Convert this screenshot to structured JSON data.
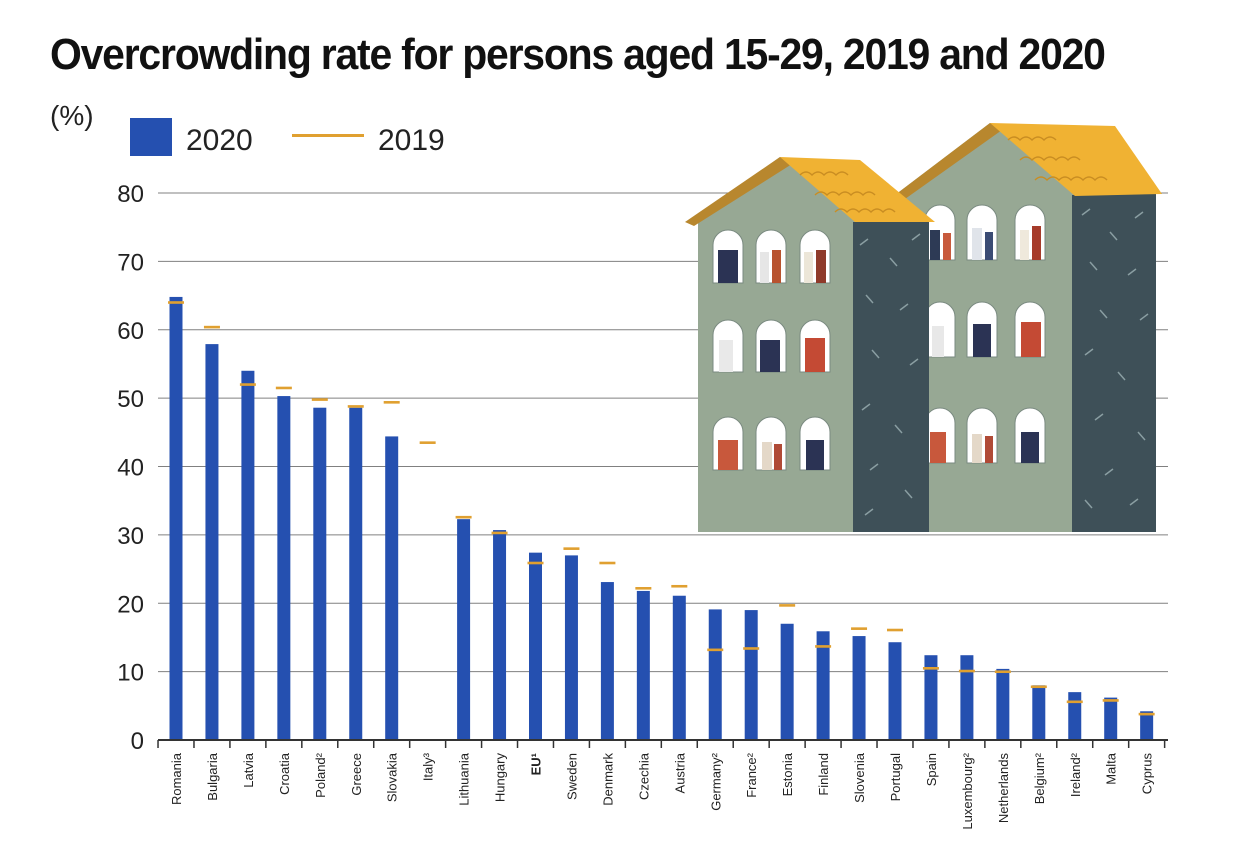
{
  "chart_data": {
    "type": "bar",
    "title": "Overcrowding rate for persons aged 15-29, 2019 and 2020",
    "ylabel": "(%)",
    "ylim": [
      0,
      80
    ],
    "yticks": [
      0,
      10,
      20,
      30,
      40,
      50,
      60,
      70,
      80
    ],
    "grid": true,
    "legend_position": "top-left",
    "categories": [
      "Romania",
      "Bulgaria",
      "Latvia",
      "Croatia",
      "Poland²",
      "Greece",
      "Slovakia",
      "Italy³",
      "Lithuania",
      "Hungary",
      "EU¹",
      "Sweden",
      "Denmark",
      "Czechia",
      "Austria",
      "Germany²",
      "France²",
      "Estonia",
      "Finland",
      "Slovenia",
      "Portugal",
      "Spain",
      "Luxembourg²",
      "Netherlands",
      "Belgium²",
      "Ireland²",
      "Malta",
      "Cyprus"
    ],
    "series": [
      {
        "name": "2020",
        "kind": "bar",
        "color": "#2550b0",
        "values": [
          64.8,
          57.9,
          54.0,
          50.3,
          48.6,
          48.6,
          44.4,
          null,
          32.3,
          30.7,
          27.4,
          27.0,
          23.1,
          21.8,
          21.1,
          19.1,
          19.0,
          17.0,
          15.9,
          15.2,
          14.3,
          12.4,
          12.4,
          10.4,
          8.0,
          7.0,
          6.2,
          4.2
        ]
      },
      {
        "name": "2019",
        "kind": "marker",
        "color": "#e0a030",
        "values": [
          64.0,
          60.4,
          52.0,
          51.5,
          49.8,
          48.8,
          49.4,
          43.5,
          32.6,
          30.3,
          25.9,
          28.0,
          25.9,
          22.2,
          22.5,
          13.2,
          13.4,
          19.7,
          13.7,
          16.3,
          16.1,
          10.5,
          10.1,
          10.0,
          7.8,
          5.6,
          5.8,
          3.8
        ]
      }
    ],
    "emphasis_category": "EU¹"
  },
  "colors": {
    "bar_2020": "#2550b0",
    "marker_2019": "#e0a030",
    "grid": "#808080",
    "axis": "#333333"
  },
  "illustration": {
    "name": "apartment-buildings-illustration"
  }
}
